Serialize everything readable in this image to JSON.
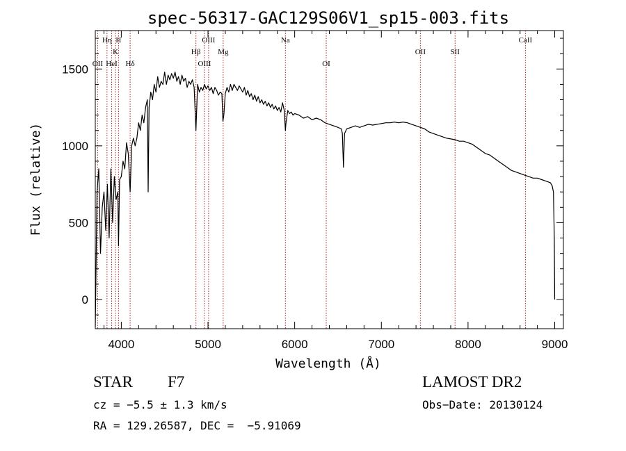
{
  "chart_data": {
    "type": "line",
    "title": "spec-56317-GAC129S06V1_sp15-003.fits",
    "xlabel": "Wavelength (Å)",
    "ylabel": "Flux (relative)",
    "xlim": [
      3700,
      9100
    ],
    "ylim": [
      -190,
      1750
    ],
    "xticks": [
      4000,
      5000,
      6000,
      7000,
      8000,
      9000
    ],
    "yticks": [
      0,
      500,
      1000,
      1500
    ],
    "grid": false,
    "series": [
      {
        "color": "#000000",
        "x": [
          3700,
          3720,
          3740,
          3760,
          3780,
          3800,
          3820,
          3840,
          3860,
          3880,
          3900,
          3920,
          3940,
          3960,
          3968,
          3980,
          4000,
          4020,
          4040,
          4060,
          4080,
          4102,
          4120,
          4140,
          4160,
          4180,
          4200,
          4220,
          4240,
          4260,
          4280,
          4300,
          4310,
          4320,
          4340,
          4360,
          4380,
          4400,
          4420,
          4440,
          4460,
          4480,
          4500,
          4520,
          4540,
          4560,
          4580,
          4600,
          4620,
          4640,
          4660,
          4680,
          4700,
          4720,
          4740,
          4760,
          4780,
          4800,
          4820,
          4840,
          4861,
          4880,
          4900,
          4920,
          4940,
          4960,
          4980,
          5000,
          5020,
          5040,
          5060,
          5080,
          5100,
          5120,
          5140,
          5160,
          5172,
          5183,
          5200,
          5220,
          5240,
          5260,
          5280,
          5300,
          5320,
          5340,
          5360,
          5380,
          5400,
          5420,
          5440,
          5460,
          5480,
          5500,
          5520,
          5540,
          5560,
          5580,
          5600,
          5620,
          5640,
          5660,
          5680,
          5700,
          5720,
          5740,
          5760,
          5780,
          5800,
          5820,
          5840,
          5860,
          5880,
          5893,
          5900,
          5920,
          5940,
          5960,
          5980,
          6000,
          6050,
          6100,
          6150,
          6200,
          6250,
          6300,
          6350,
          6400,
          6450,
          6500,
          6540,
          6550,
          6563,
          6575,
          6600,
          6650,
          6700,
          6750,
          6800,
          6850,
          6900,
          6950,
          7000,
          7050,
          7100,
          7150,
          7200,
          7250,
          7300,
          7350,
          7400,
          7450,
          7500,
          7550,
          7600,
          7650,
          7700,
          7750,
          7800,
          7850,
          7900,
          7950,
          8000,
          8050,
          8100,
          8150,
          8200,
          8250,
          8300,
          8350,
          8400,
          8450,
          8500,
          8550,
          8600,
          8650,
          8700,
          8750,
          8800,
          8850,
          8900,
          8950,
          8970,
          8985,
          8995,
          9000
        ],
        "y": [
          -180,
          700,
          850,
          300,
          600,
          700,
          450,
          750,
          400,
          850,
          500,
          800,
          650,
          700,
          350,
          780,
          800,
          900,
          850,
          1020,
          950,
          700,
          1000,
          1050,
          1000,
          1050,
          1150,
          1100,
          1200,
          1150,
          1250,
          1300,
          700,
          1250,
          1350,
          1300,
          1400,
          1350,
          1450,
          1380,
          1420,
          1400,
          1480,
          1400,
          1460,
          1430,
          1470,
          1440,
          1480,
          1420,
          1450,
          1400,
          1460,
          1420,
          1440,
          1380,
          1420,
          1400,
          1430,
          1380,
          1100,
          1400,
          1350,
          1380,
          1360,
          1400,
          1370,
          1390,
          1360,
          1380,
          1340,
          1380,
          1360,
          1330,
          1350,
          1340,
          1160,
          1200,
          1340,
          1380,
          1350,
          1400,
          1360,
          1400,
          1380,
          1360,
          1390,
          1370,
          1350,
          1380,
          1330,
          1360,
          1320,
          1340,
          1300,
          1330,
          1290,
          1320,
          1280,
          1300,
          1270,
          1290,
          1260,
          1280,
          1250,
          1270,
          1240,
          1260,
          1230,
          1250,
          1220,
          1280,
          1230,
          1100,
          1150,
          1230,
          1210,
          1220,
          1200,
          1210,
          1200,
          1180,
          1190,
          1170,
          1180,
          1170,
          1150,
          1140,
          1130,
          1120,
          1110,
          1080,
          860,
          1080,
          1110,
          1120,
          1130,
          1120,
          1130,
          1140,
          1135,
          1140,
          1145,
          1150,
          1150,
          1155,
          1150,
          1155,
          1150,
          1140,
          1130,
          1120,
          1110,
          1090,
          1080,
          1070,
          1060,
          1050,
          1045,
          1040,
          1030,
          1030,
          1020,
          1010,
          990,
          970,
          950,
          940,
          920,
          900,
          880,
          860,
          840,
          830,
          820,
          810,
          800,
          790,
          790,
          780,
          770,
          760,
          740,
          700,
          400,
          0
        ]
      }
    ],
    "lines": [
      {
        "x": 3727,
        "label": "OII",
        "row": 3
      },
      {
        "x": 3835,
        "label": "Hη",
        "row": 1
      },
      {
        "x": 3889,
        "label": "HeI",
        "row": 3
      },
      {
        "x": 3934,
        "label": "K",
        "row": 2
      },
      {
        "x": 3968,
        "label": "H",
        "row": 1
      },
      {
        "x": 4102,
        "label": "Hδ",
        "row": 3
      },
      {
        "x": 4861,
        "label": "Hβ",
        "row": 2
      },
      {
        "x": 4959,
        "label": "OIII",
        "row": 3
      },
      {
        "x": 5007,
        "label": "OIII",
        "row": 1
      },
      {
        "x": 5175,
        "label": "Mg",
        "row": 2
      },
      {
        "x": 5893,
        "label": "Na",
        "row": 1
      },
      {
        "x": 6364,
        "label": "OI",
        "row": 3
      },
      {
        "x": 7450,
        "label": "OII",
        "row": 2
      },
      {
        "x": 7850,
        "label": "SII",
        "row": 2
      },
      {
        "x": 8662,
        "label": "CaII",
        "row": 1
      }
    ]
  },
  "info": {
    "object_class": "STAR",
    "subclass": "F7",
    "survey": "LAMOST DR2",
    "cz": "cz = −5.5 ± 1.3 km/s",
    "obs_date": "Obs−Date: 20130124",
    "coords": "RA = 129.26587, DEC =  −5.91069"
  }
}
